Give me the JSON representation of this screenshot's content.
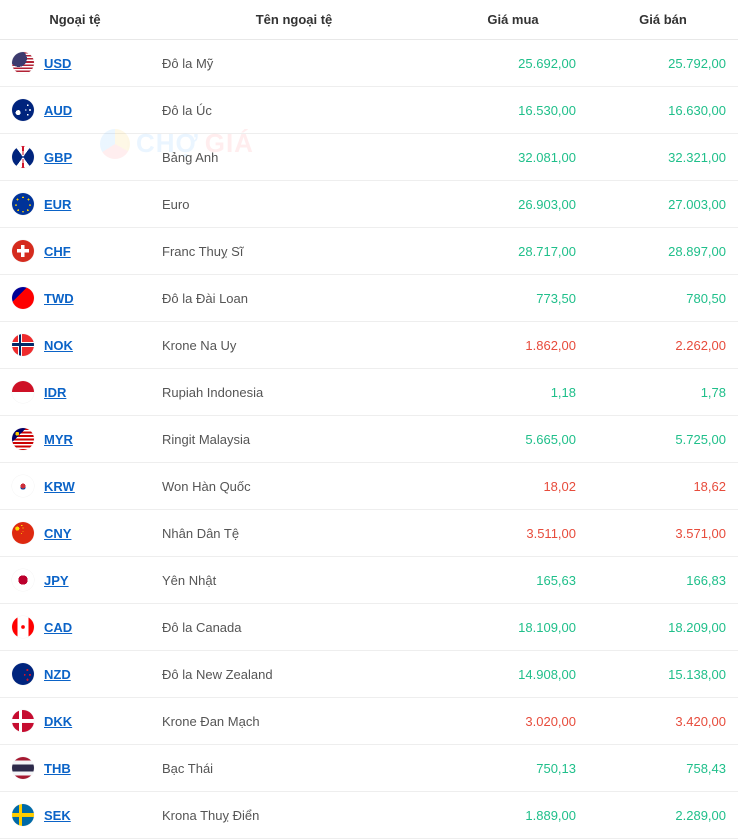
{
  "header": {
    "col_code": "Ngoại tệ",
    "col_name": "Tên ngoại tệ",
    "col_buy": "Giá mua",
    "col_sell": "Giá bán"
  },
  "watermark": {
    "text1": "CHỢ",
    "text2": "GIÁ"
  },
  "colors": {
    "link": "#0b63c7",
    "up": "#1fbf8a",
    "down": "#e74c3c",
    "row_border": "#eeeeee"
  },
  "flags": {
    "USD": "linear-gradient(180deg,#b22234 0 7%,#fff 7% 14%,#b22234 14% 21%,#fff 21% 28%,#b22234 28% 35%,#fff 35% 42%,#b22234 42% 49%,#fff 49% 56%,#b22234 56% 63%,#fff 63% 70%,#b22234 70% 77%,#fff 77% 84%,#b22234 84% 91%,#fff 91% 100%)",
    "USD_overlay": "radial-gradient(circle at 30% 30%, #3c3b6e 0 38%, transparent 38%)",
    "AUD": "radial-gradient(circle at 28% 62%, #fff 0 12%, transparent 12%), radial-gradient(circle at 72% 28%, #fff 0 4%, transparent 4%), radial-gradient(circle at 82% 50%, #fff 0 4%, transparent 4%), radial-gradient(circle at 72% 72%, #fff 0 4%, transparent 4%), radial-gradient(circle at 62% 50%, #fff 0 4%, transparent 4%), linear-gradient(#00247d,#00247d)",
    "GBP": "conic-gradient(at 50% 50%, #cf142b 0 2%, #fff 2% 10%, #00247d 10% 40%, #fff 40% 48%, #cf142b 48% 52%, #fff 52% 60%, #00247d 60% 90%, #fff 90% 98%, #cf142b 98% 100%)",
    "EUR": "radial-gradient(circle at 50% 50%, transparent 0 30%, transparent 30%), radial-gradient(circle, #003399 0 100%)",
    "EUR_stars": "radial-gradient(circle at 50% 20%,#ffcc00 0 4%,transparent 4%),radial-gradient(circle at 75% 30%,#ffcc00 0 4%,transparent 4%),radial-gradient(circle at 82% 55%,#ffcc00 0 4%,transparent 4%),radial-gradient(circle at 72% 78%,#ffcc00 0 4%,transparent 4%),radial-gradient(circle at 50% 85%,#ffcc00 0 4%,transparent 4%),radial-gradient(circle at 28% 78%,#ffcc00 0 4%,transparent 4%),radial-gradient(circle at 18% 55%,#ffcc00 0 4%,transparent 4%),radial-gradient(circle at 25% 30%,#ffcc00 0 4%,transparent 4%)",
    "CHF": "linear-gradient(#fff,#fff) center/55% 16% no-repeat, linear-gradient(#fff,#fff) center/16% 55% no-repeat, linear-gradient(#d52b1e,#d52b1e)",
    "TWD": "linear-gradient(135deg,#000095 0 35%, transparent 35%), radial-gradient(circle at 24% 26%, #fff 0 10%, transparent 10%), linear-gradient(#fe0000,#fe0000)",
    "NOK": "linear-gradient(#002868,#002868) 36% 0/10% 100% no-repeat, linear-gradient(#002868,#002868) 0 50%/100% 14% no-repeat, linear-gradient(#fff,#fff) 34% 0/18% 100% no-repeat, linear-gradient(#fff,#fff) 0 50%/100% 24% no-repeat, linear-gradient(#ef2b2d,#ef2b2d)",
    "IDR": "linear-gradient(180deg,#ce1126 0 50%,#fff 50% 100%)",
    "MYR": "radial-gradient(circle at 24% 26%, #ffcc00 0 8%, transparent 8%), linear-gradient(135deg,#010066 0 32%, transparent 32%), repeating-linear-gradient(180deg,#cc0001 0 8%,#fff 8% 16%)",
    "KRW": "radial-gradient(circle at 50% 50%, #cd2e3a 0 16%, transparent 16%), radial-gradient(circle at 50% 55%, #0047a0 0 16%, transparent 16%), linear-gradient(#fff,#fff)",
    "CNY": "radial-gradient(circle at 24% 30%,#ffde00 0 9%,transparent 9%), radial-gradient(circle at 44% 16%,#ffde00 0 3%,transparent 3%), radial-gradient(circle at 50% 28%,#ffde00 0 3%,transparent 3%), radial-gradient(circle at 50% 42%,#ffde00 0 3%,transparent 3%), radial-gradient(circle at 44% 52%,#ffde00 0 3%,transparent 3%), linear-gradient(#de2910,#de2910)",
    "JPY": "radial-gradient(circle at 50% 50%, #bc002d 0 30%, #fff 30% 100%)",
    "CAD": "linear-gradient(90deg,#ff0000 0 25%,#fff 25% 75%,#ff0000 75% 100%)",
    "CAD_leaf": "radial-gradient(circle at 50% 50%, #ff0000 0 12%, transparent 12%)",
    "NZD": "radial-gradient(circle at 70% 32%,#cc142b 0 5%,transparent 5%), radial-gradient(circle at 82% 54%,#cc142b 0 5%,transparent 5%), radial-gradient(circle at 70% 76%,#cc142b 0 5%,transparent 5%), radial-gradient(circle at 58% 54%,#cc142b 0 5%,transparent 5%), linear-gradient(#00247d,#00247d)",
    "DKK": "linear-gradient(#fff,#fff) 38% 0/14% 100% no-repeat, linear-gradient(#fff,#fff) 0 50%/100% 18% no-repeat, linear-gradient(#c60c30,#c60c30)",
    "THB": "linear-gradient(180deg,#a51931 0 16%,#f4f5f8 16% 33%,#2d2a4a 33% 67%,#f4f5f8 67% 84%,#a51931 84% 100%)",
    "SEK": "linear-gradient(#fecc00,#fecc00) 36% 0/14% 100% no-repeat, linear-gradient(#fecc00,#fecc00) 0 50%/100% 18% no-repeat, linear-gradient(#006aa7,#006aa7)"
  },
  "rows": [
    {
      "code": "USD",
      "name": "Đô la Mỹ",
      "buy": "25.692,00",
      "sell": "25.792,00",
      "buy_dir": "up",
      "sell_dir": "up"
    },
    {
      "code": "AUD",
      "name": "Đô la Úc",
      "buy": "16.530,00",
      "sell": "16.630,00",
      "buy_dir": "up",
      "sell_dir": "up"
    },
    {
      "code": "GBP",
      "name": "Bảng Anh",
      "buy": "32.081,00",
      "sell": "32.321,00",
      "buy_dir": "up",
      "sell_dir": "up"
    },
    {
      "code": "EUR",
      "name": "Euro",
      "buy": "26.903,00",
      "sell": "27.003,00",
      "buy_dir": "up",
      "sell_dir": "up"
    },
    {
      "code": "CHF",
      "name": "Franc Thuỵ Sĩ",
      "buy": "28.717,00",
      "sell": "28.897,00",
      "buy_dir": "up",
      "sell_dir": "up"
    },
    {
      "code": "TWD",
      "name": "Đô la Đài Loan",
      "buy": "773,50",
      "sell": "780,50",
      "buy_dir": "up",
      "sell_dir": "up"
    },
    {
      "code": "NOK",
      "name": "Krone Na Uy",
      "buy": "1.862,00",
      "sell": "2.262,00",
      "buy_dir": "down",
      "sell_dir": "down"
    },
    {
      "code": "IDR",
      "name": "Rupiah Indonesia",
      "buy": "1,18",
      "sell": "1,78",
      "buy_dir": "up",
      "sell_dir": "up"
    },
    {
      "code": "MYR",
      "name": "Ringit Malaysia",
      "buy": "5.665,00",
      "sell": "5.725,00",
      "buy_dir": "up",
      "sell_dir": "up"
    },
    {
      "code": "KRW",
      "name": "Won Hàn Quốc",
      "buy": "18,02",
      "sell": "18,62",
      "buy_dir": "down",
      "sell_dir": "down"
    },
    {
      "code": "CNY",
      "name": "Nhân Dân Tệ",
      "buy": "3.511,00",
      "sell": "3.571,00",
      "buy_dir": "down",
      "sell_dir": "down"
    },
    {
      "code": "JPY",
      "name": "Yên Nhật",
      "buy": "165,63",
      "sell": "166,83",
      "buy_dir": "up",
      "sell_dir": "up"
    },
    {
      "code": "CAD",
      "name": "Đô la Canada",
      "buy": "18.109,00",
      "sell": "18.209,00",
      "buy_dir": "up",
      "sell_dir": "up"
    },
    {
      "code": "NZD",
      "name": "Đô la New Zealand",
      "buy": "14.908,00",
      "sell": "15.138,00",
      "buy_dir": "up",
      "sell_dir": "up"
    },
    {
      "code": "DKK",
      "name": "Krone Đan Mạch",
      "buy": "3.020,00",
      "sell": "3.420,00",
      "buy_dir": "down",
      "sell_dir": "down"
    },
    {
      "code": "THB",
      "name": "Bạc Thái",
      "buy": "750,13",
      "sell": "758,43",
      "buy_dir": "up",
      "sell_dir": "up"
    },
    {
      "code": "SEK",
      "name": "Krona Thuỵ Điển",
      "buy": "1.889,00",
      "sell": "2.289,00",
      "buy_dir": "up",
      "sell_dir": "up"
    }
  ]
}
